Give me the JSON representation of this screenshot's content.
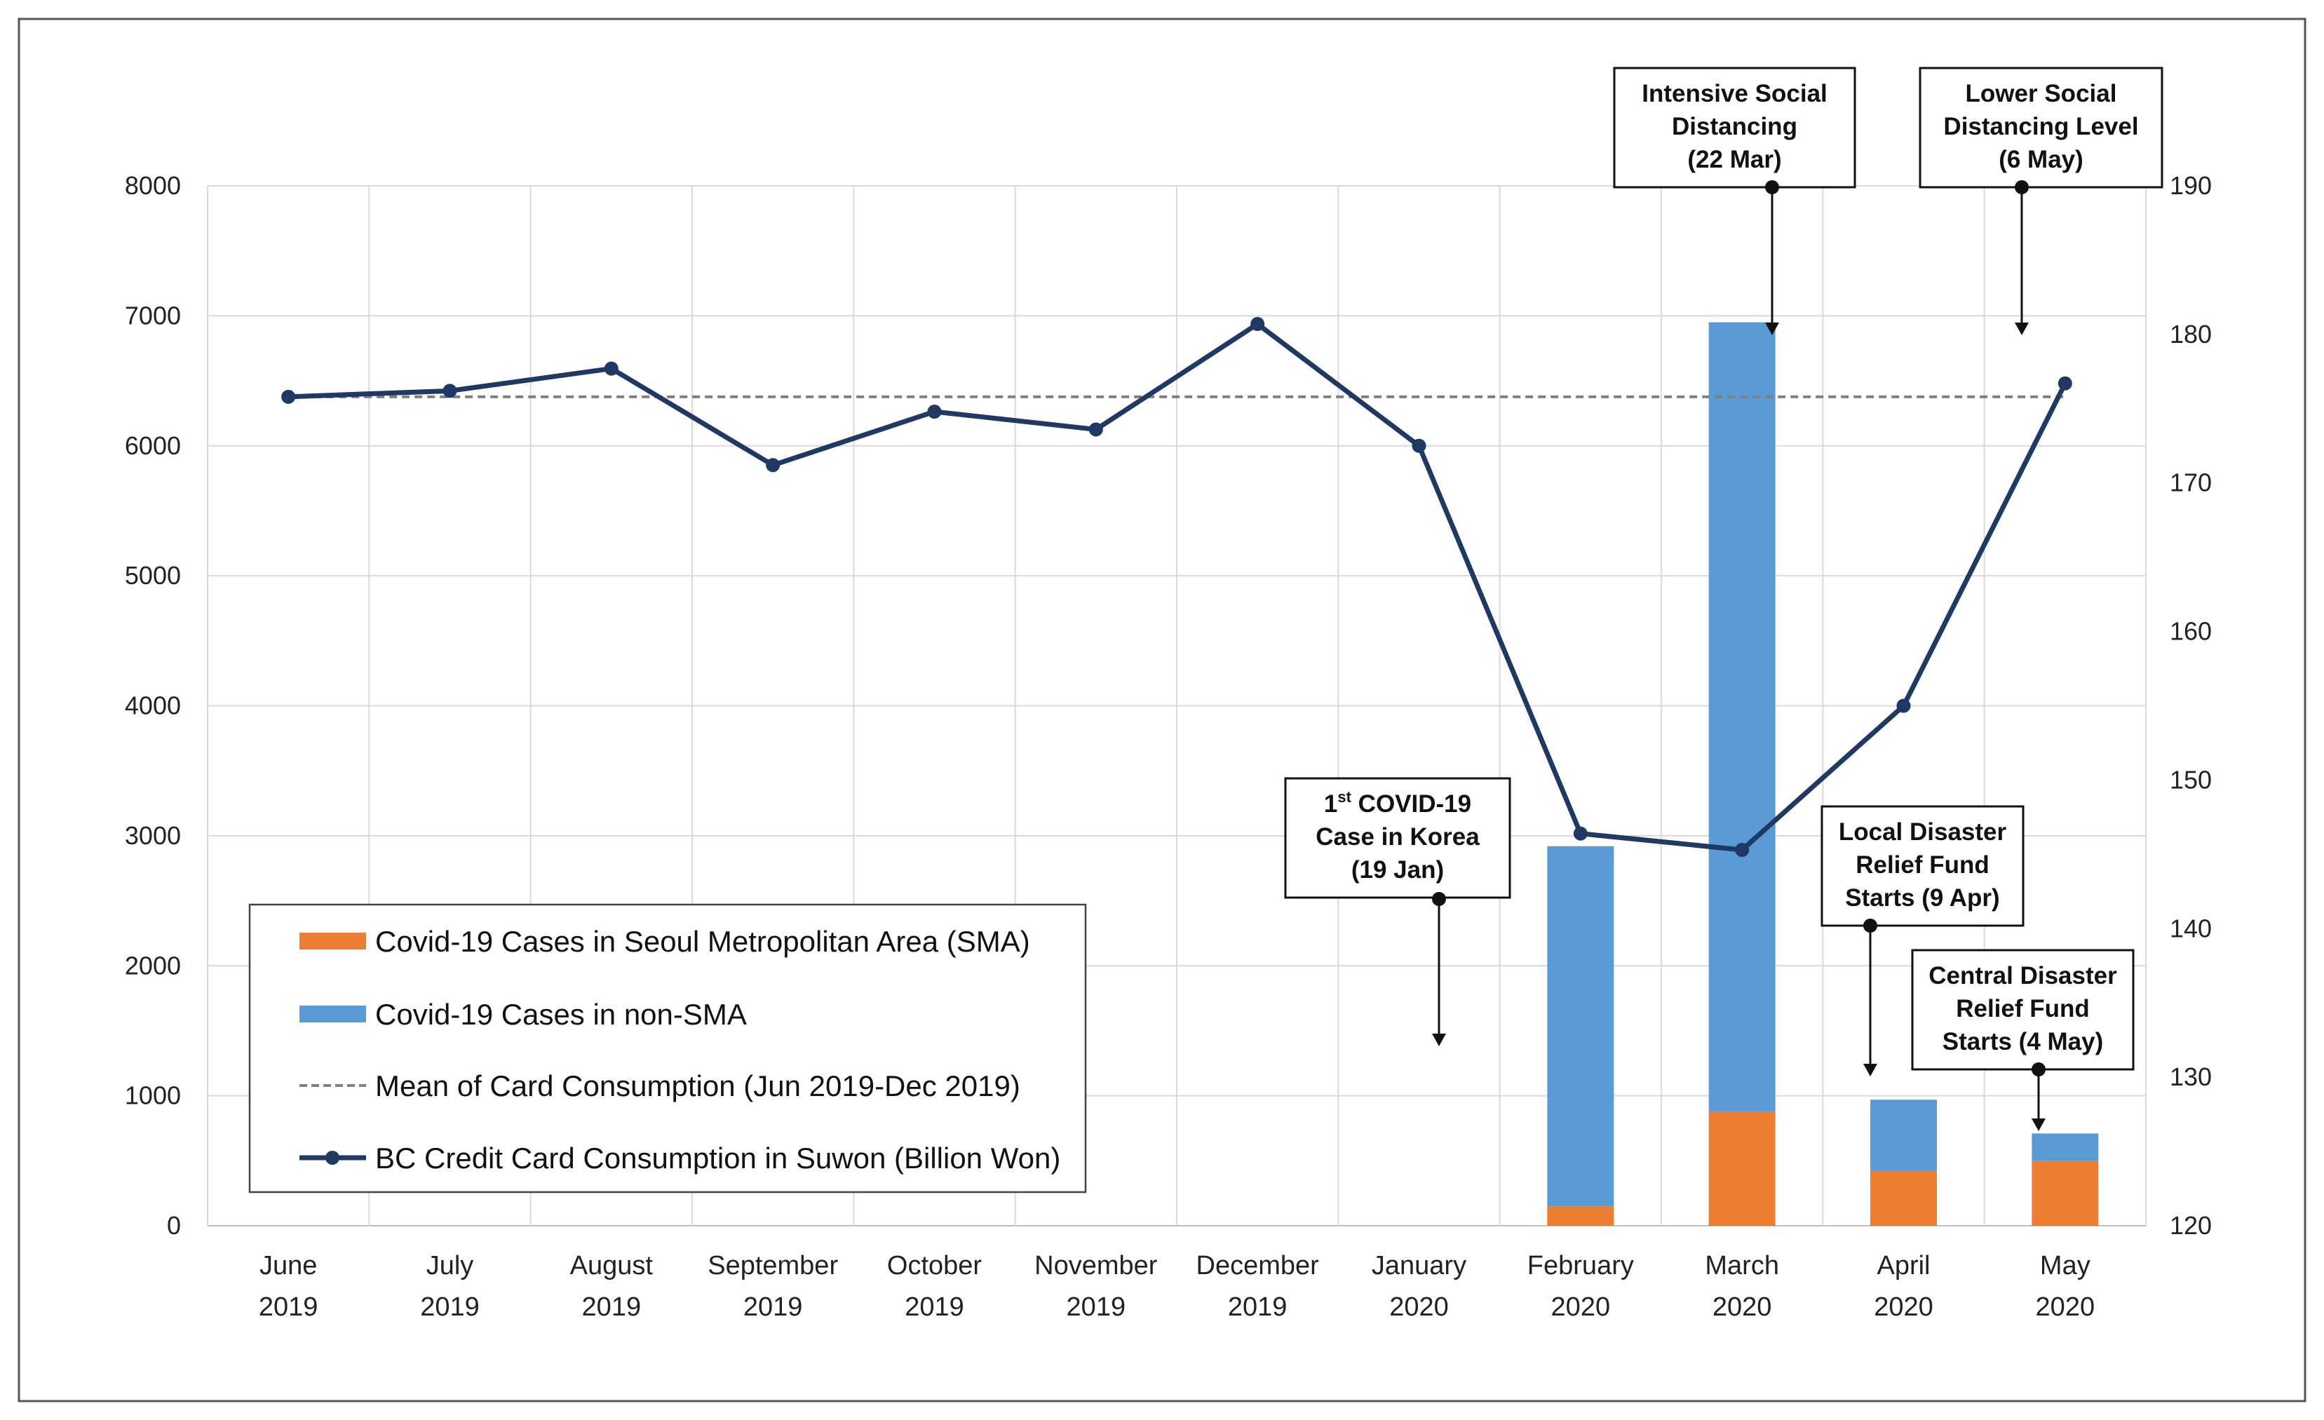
{
  "chart_data": {
    "type": "bar+line",
    "categories": [
      [
        "June",
        "2019"
      ],
      [
        "July",
        "2019"
      ],
      [
        "August",
        "2019"
      ],
      [
        "September",
        "2019"
      ],
      [
        "October",
        "2019"
      ],
      [
        "November",
        "2019"
      ],
      [
        "December",
        "2019"
      ],
      [
        "January",
        "2020"
      ],
      [
        "February",
        "2020"
      ],
      [
        "March",
        "2020"
      ],
      [
        "April",
        "2020"
      ],
      [
        "May",
        "2020"
      ]
    ],
    "left_axis": {
      "ticks": [
        "0",
        "1000",
        "2000",
        "3000",
        "4000",
        "5000",
        "6000",
        "7000",
        "8000"
      ],
      "ylim": [
        0,
        8000
      ]
    },
    "right_axis": {
      "ticks": [
        "120",
        "130",
        "140",
        "150",
        "160",
        "170",
        "180",
        "190"
      ],
      "ylim": [
        120,
        190
      ]
    },
    "series": [
      {
        "name": "Covid-19 Cases in Seoul Metropolitan Area (SMA)",
        "type": "stacked-bar",
        "axis": "left",
        "color": "#ED7D31",
        "values": [
          0,
          0,
          0,
          0,
          0,
          0,
          0,
          0,
          150,
          880,
          420,
          500
        ]
      },
      {
        "name": "Covid-19 Cases in non-SMA",
        "type": "stacked-bar",
        "axis": "left",
        "color": "#5B9BD5",
        "values": [
          0,
          0,
          0,
          0,
          0,
          0,
          0,
          0,
          2770,
          6070,
          550,
          210
        ]
      },
      {
        "name": "Mean of Card Consumption (Jun 2019-Dec 2019)",
        "type": "dashed-line",
        "axis": "right",
        "color": "#808080",
        "value": 175.8
      },
      {
        "name": "BC Credit Card Consumption in Suwon (Billion Won)",
        "type": "line",
        "axis": "right",
        "color": "#1F3864",
        "values": [
          175.8,
          176.2,
          177.7,
          171.2,
          174.8,
          173.6,
          180.7,
          172.5,
          146.4,
          145.3,
          155.0,
          176.7
        ]
      }
    ],
    "legend_position": "bottom-left",
    "annotations": [
      {
        "lines": [
          "1st COVID-19",
          "Case in Korea",
          "(19 Jan)"
        ],
        "month_index": 7
      },
      {
        "lines": [
          "Intensive Social",
          "Distancing",
          "(22 Mar)"
        ],
        "month_index": 9
      },
      {
        "lines": [
          "Lower Social",
          "Distancing Level",
          "(6 May)"
        ],
        "month_index": 11
      },
      {
        "lines": [
          "Local Disaster",
          "Relief Fund",
          "Starts (9 Apr)"
        ],
        "month_index": 10
      },
      {
        "lines": [
          "Central Disaster",
          "Relief Fund",
          "Starts (4 May)"
        ],
        "month_index": 11
      }
    ]
  }
}
